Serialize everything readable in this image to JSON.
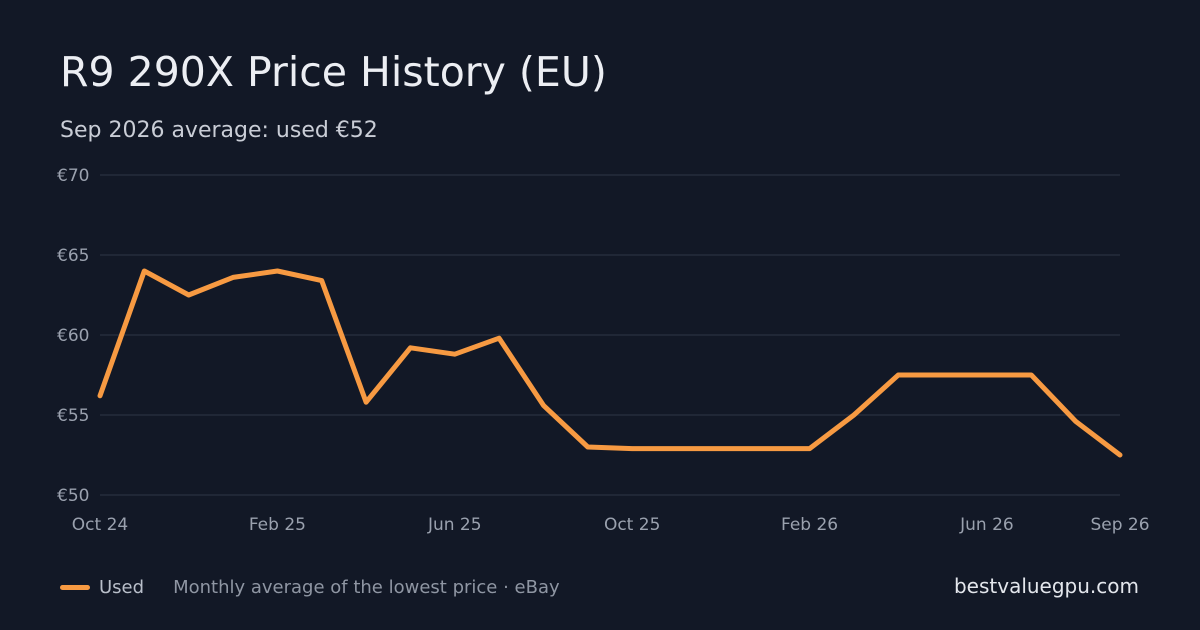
{
  "chart_data": {
    "type": "line",
    "title": "R9 290X Price History (EU)",
    "subtitle": "Sep 2026 average: used €52",
    "xlabel": "",
    "ylabel": "",
    "x": [
      "Oct 24",
      "Nov 24",
      "Dec 24",
      "Jan 25",
      "Feb 25",
      "Mar 25",
      "Apr 25",
      "May 25",
      "Jun 25",
      "Jul 25",
      "Aug 25",
      "Sep 25",
      "Oct 25",
      "Nov 25",
      "Dec 25",
      "Jan 26",
      "Feb 26",
      "Mar 26",
      "Apr 26",
      "May 26",
      "Jun 26",
      "Jul 26",
      "Aug 26",
      "Sep 26"
    ],
    "x_tick_labels": [
      "Oct 24",
      "Feb 25",
      "Jun 25",
      "Oct 25",
      "Feb 26",
      "Jun 26",
      "Sep 26"
    ],
    "y_tick_labels": [
      "€70",
      "€65",
      "€60",
      "€55",
      "€50"
    ],
    "y_ticks": [
      70,
      65,
      60,
      55,
      50
    ],
    "ylim": [
      50,
      70
    ],
    "grid": true,
    "legend_position": "bottom-left",
    "series": [
      {
        "name": "Used",
        "color": "#f79a42",
        "values": [
          56.2,
          64.0,
          62.5,
          63.6,
          64.0,
          63.4,
          55.8,
          59.2,
          58.8,
          59.8,
          55.6,
          53.0,
          52.9,
          52.9,
          52.9,
          52.9,
          52.9,
          55.0,
          57.5,
          57.5,
          57.5,
          57.5,
          54.6,
          52.5
        ]
      }
    ]
  },
  "legend": {
    "used_label": "Used",
    "note": "Monthly average of the lowest price · eBay"
  },
  "brand": "bestvaluegpu.com",
  "colors": {
    "background": "#121826",
    "grid": "#252c3b",
    "accent": "#f79a42"
  }
}
